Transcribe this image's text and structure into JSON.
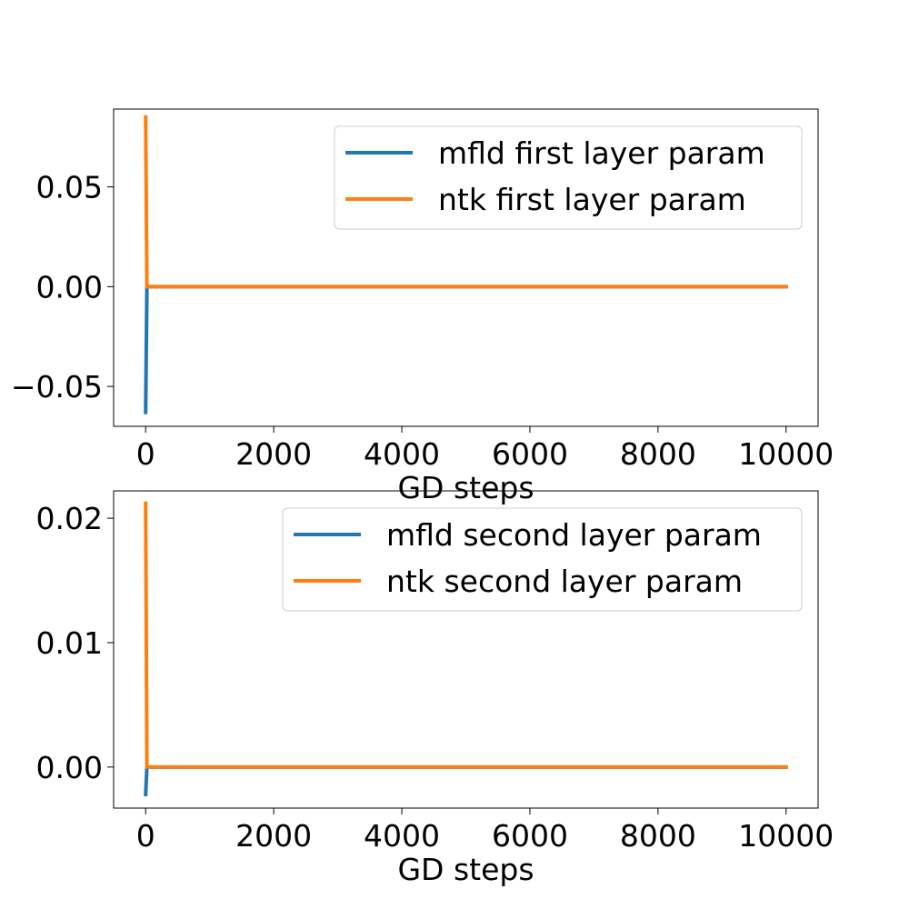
{
  "chart_data": [
    {
      "type": "line",
      "title": "",
      "xlabel": "GD steps",
      "ylabel": "",
      "xlim": [
        -500,
        10500
      ],
      "ylim": [
        -0.07,
        0.089
      ],
      "xticks": [
        0,
        2000,
        4000,
        6000,
        8000,
        10000
      ],
      "xtick_labels": [
        "0",
        "2000",
        "4000",
        "6000",
        "8000",
        "10000"
      ],
      "yticks": [
        -0.05,
        0.0,
        0.05
      ],
      "ytick_labels": [
        "−0.05",
        "0.00",
        "0.05"
      ],
      "legend_position": "upper right",
      "series": [
        {
          "name": "mfld first layer param",
          "color": "#1f77b4",
          "x": [
            0,
            20,
            40,
            100,
            1000,
            5000,
            10000
          ],
          "y": [
            -0.063,
            0.0,
            0.0,
            0.0,
            0.0,
            0.0,
            0.0
          ]
        },
        {
          "name": "ntk first layer param",
          "color": "#ff7f0e",
          "x": [
            0,
            20,
            40,
            100,
            1000,
            5000,
            10000
          ],
          "y": [
            0.085,
            0.0,
            0.0,
            0.0,
            0.0,
            0.0,
            0.0
          ]
        }
      ]
    },
    {
      "type": "line",
      "title": "",
      "xlabel": "GD steps",
      "ylabel": "",
      "xlim": [
        -500,
        10500
      ],
      "ylim": [
        -0.0033,
        0.0222
      ],
      "xticks": [
        0,
        2000,
        4000,
        6000,
        8000,
        10000
      ],
      "xtick_labels": [
        "0",
        "2000",
        "4000",
        "6000",
        "8000",
        "10000"
      ],
      "yticks": [
        0.0,
        0.01,
        0.02
      ],
      "ytick_labels": [
        "0.00",
        "0.01",
        "0.02"
      ],
      "legend_position": "upper right",
      "series": [
        {
          "name": "mfld second layer param",
          "color": "#1f77b4",
          "x": [
            0,
            20,
            40,
            100,
            1000,
            5000,
            10000
          ],
          "y": [
            -0.0022,
            0.0,
            0.0,
            0.0,
            0.0,
            0.0,
            0.0
          ]
        },
        {
          "name": "ntk second layer param",
          "color": "#ff7f0e",
          "x": [
            0,
            20,
            40,
            100,
            1000,
            5000,
            10000
          ],
          "y": [
            0.0212,
            0.0,
            0.0,
            0.0,
            0.0,
            0.0,
            0.0
          ]
        }
      ]
    }
  ]
}
